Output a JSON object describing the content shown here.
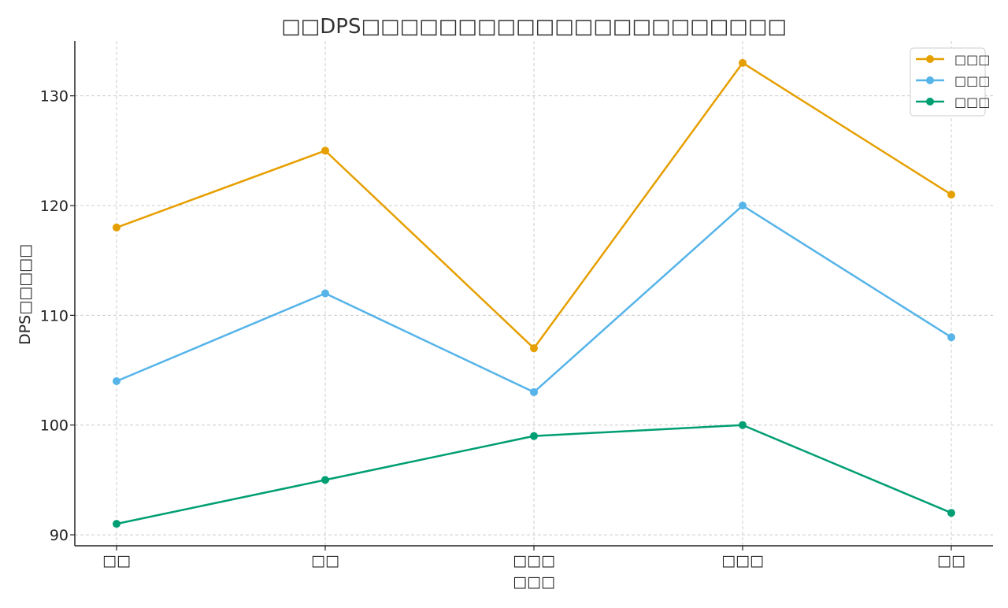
{
  "chart_data": {
    "type": "line",
    "title": "□□DPS□□□□□□□□□□□□□□□□□□□□□□",
    "xlabel": "□□□",
    "ylabel": "DPS□□□□□",
    "categories": [
      "□□",
      "□□",
      "□□□",
      "□□□",
      "□□"
    ],
    "y_ticks": [
      90,
      100,
      110,
      120,
      130
    ],
    "ylim": [
      89,
      135
    ],
    "grid": true,
    "legend_position": "top-right",
    "series": [
      {
        "name": "□□□",
        "color": "#E69F00",
        "values": [
          118,
          125,
          107,
          133,
          121
        ]
      },
      {
        "name": "□□□",
        "color": "#56B4E9",
        "values": [
          104,
          112,
          103,
          120,
          108
        ]
      },
      {
        "name": "□□□",
        "color": "#009E73",
        "values": [
          91,
          95,
          99,
          100,
          92
        ]
      }
    ]
  }
}
